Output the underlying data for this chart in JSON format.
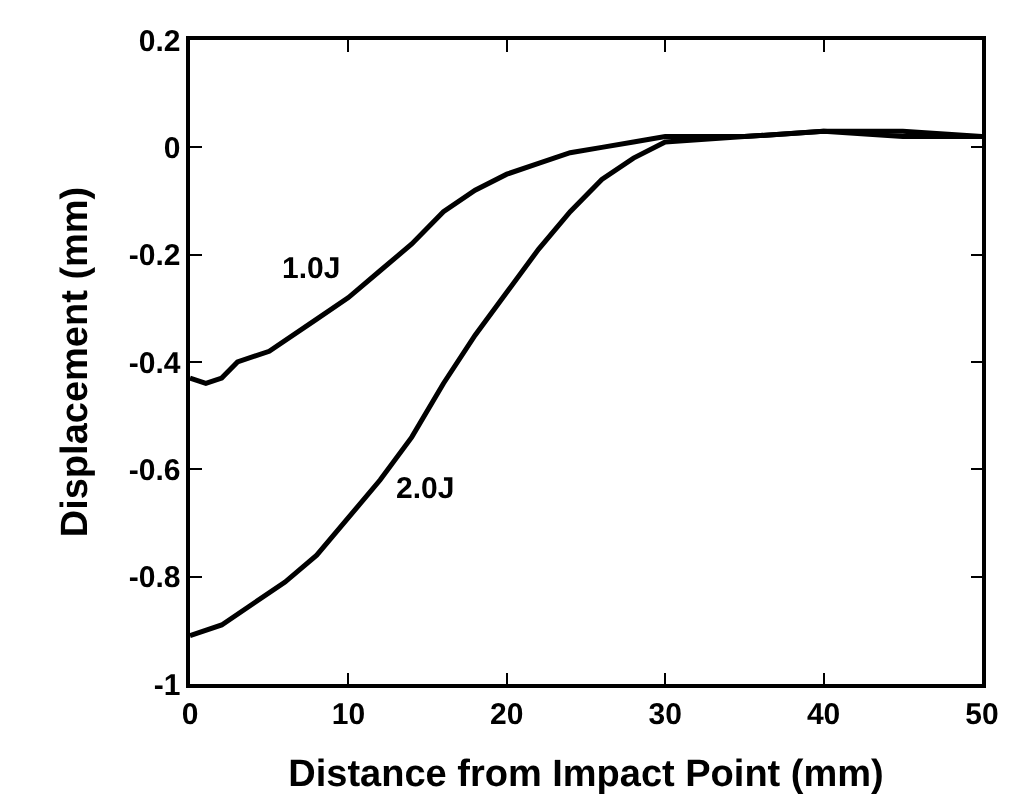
{
  "chart_data": {
    "type": "line",
    "xlabel": "Distance from Impact Point (mm)",
    "ylabel": "Displacement (mm)",
    "xlim": [
      0,
      50
    ],
    "xticks": [
      0,
      10,
      20,
      30,
      40,
      50
    ],
    "ylim": [
      -1,
      0.2
    ],
    "yticks": [
      -1,
      -0.8,
      -0.6,
      -0.4,
      -0.2,
      0,
      0.2
    ],
    "marker": "none",
    "line_style": "solid",
    "series": [
      {
        "name": "1.0J",
        "color": "#000000",
        "x": [
          0,
          1,
          2,
          3,
          5,
          8,
          10,
          12,
          14,
          16,
          18,
          20,
          22,
          24,
          26,
          28,
          30,
          35,
          40,
          45,
          50
        ],
        "values": [
          -0.43,
          -0.44,
          -0.43,
          -0.4,
          -0.38,
          -0.32,
          -0.28,
          -0.23,
          -0.18,
          -0.12,
          -0.08,
          -0.05,
          -0.03,
          -0.01,
          0.0,
          0.01,
          0.02,
          0.02,
          0.03,
          0.03,
          0.02
        ]
      },
      {
        "name": "2.0J",
        "color": "#000000",
        "x": [
          0,
          2,
          4,
          6,
          8,
          10,
          12,
          14,
          16,
          18,
          20,
          22,
          24,
          26,
          28,
          30,
          35,
          40,
          45,
          50
        ],
        "values": [
          -0.91,
          -0.89,
          -0.85,
          -0.81,
          -0.76,
          -0.69,
          -0.62,
          -0.54,
          -0.44,
          -0.35,
          -0.27,
          -0.19,
          -0.12,
          -0.06,
          -0.02,
          0.01,
          0.02,
          0.03,
          0.02,
          0.02
        ]
      }
    ]
  }
}
